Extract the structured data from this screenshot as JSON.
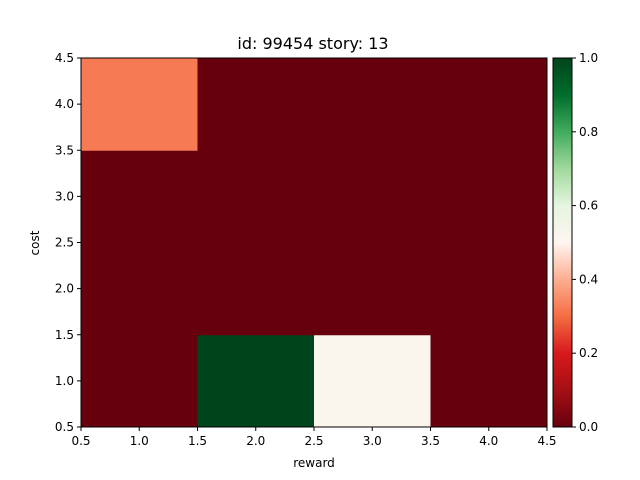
{
  "chart_data": {
    "type": "heatmap",
    "title": "id: 99454 story: 13",
    "xlabel": "reward",
    "ylabel": "cost",
    "xlim": [
      0.5,
      4.5
    ],
    "ylim": [
      0.5,
      4.5
    ],
    "x_ticks": [
      "0.5",
      "1.0",
      "1.5",
      "2.0",
      "2.5",
      "3.0",
      "3.5",
      "4.0",
      "4.5"
    ],
    "y_ticks": [
      "0.5",
      "1.0",
      "1.5",
      "2.0",
      "2.5",
      "3.0",
      "3.5",
      "4.0",
      "4.5"
    ],
    "x": [
      1,
      2,
      3,
      4
    ],
    "y": [
      1,
      4
    ],
    "values": [
      [
        0.0,
        1.0,
        0.52,
        0.0
      ],
      [
        0.32,
        0.0,
        0.0,
        0.0
      ]
    ],
    "colormap": "RdYlGn-style (red 0 → white 0.5 → green 1)",
    "colorbar": {
      "range": [
        0.0,
        1.0
      ],
      "ticks": [
        "0.0",
        "0.2",
        "0.4",
        "0.6",
        "0.8",
        "1.0"
      ]
    },
    "grid": false,
    "colors": {
      "low": "#67000d",
      "mid": "#f7fcf5",
      "high": "#00441b"
    }
  }
}
